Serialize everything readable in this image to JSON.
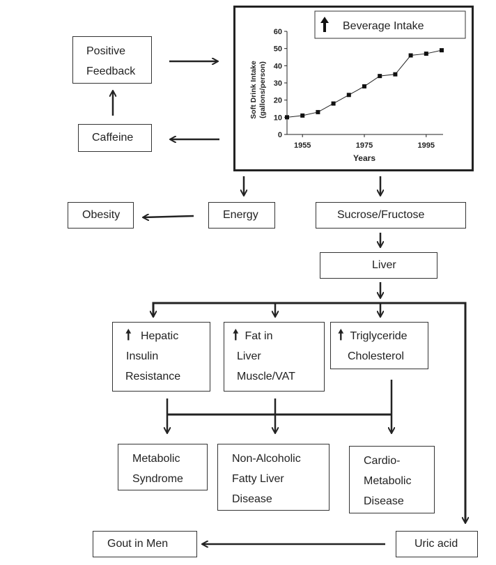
{
  "nodes": {
    "positive_feedback": [
      "Positive",
      "Feedback"
    ],
    "caffeine": "Caffeine",
    "obesity": "Obesity",
    "energy": "Energy",
    "sucrose_fructose": "Sucrose/Fructose",
    "liver": "Liver",
    "hepatic": [
      "Hepatic",
      "Insulin",
      "Resistance"
    ],
    "fat": [
      "Fat in",
      "Liver",
      "Muscle/VAT"
    ],
    "triglyceride": [
      "Triglyceride",
      "Cholesterol"
    ],
    "metabolic_syndrome": [
      "Metabolic",
      "Syndrome"
    ],
    "nafld": [
      "Non-Alcoholic",
      "Fatty Liver",
      "Disease"
    ],
    "cardio": [
      "Cardio-",
      "Metabolic",
      "Disease"
    ],
    "gout": "Gout in Men",
    "uric_acid": "Uric acid"
  },
  "chart_data": {
    "type": "line",
    "legend": "Beverage Intake",
    "xlabel": "Years",
    "ylabel": "Soft Drink Intake (gallons/person)",
    "ylabel_lines": [
      "Soft Drink Intake",
      "(gallons/person)"
    ],
    "x": [
      1950,
      1955,
      1960,
      1965,
      1970,
      1975,
      1980,
      1985,
      1990,
      1995,
      2000
    ],
    "values": [
      10,
      11,
      13,
      18,
      23,
      28,
      34,
      35,
      46,
      47,
      49
    ],
    "xlim": [
      1950,
      2000
    ],
    "ylim": [
      0,
      60
    ],
    "xticks": [
      1955,
      1975,
      1995
    ],
    "yticks": [
      0,
      10,
      20,
      30,
      40,
      50,
      60
    ],
    "grid": false,
    "legend_placement": "top-right"
  }
}
